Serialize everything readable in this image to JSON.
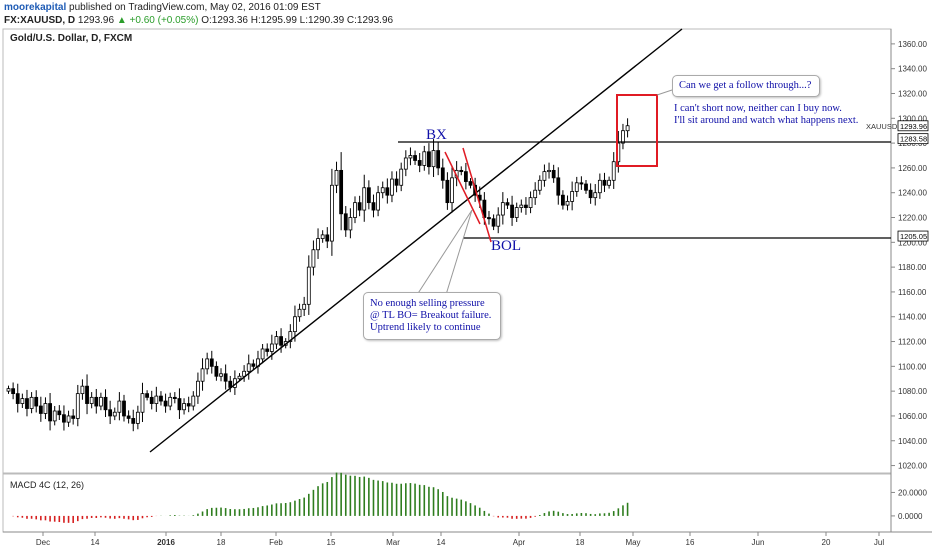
{
  "header": {
    "publisher": "moorekapital",
    "published_text": "published on TradingView.com, May 02, 2016 01:09 EST",
    "symbol_line_prefix": "FX:XAUUSD, D",
    "last_price": "1293.96",
    "change": "+0.60 (+0.05%)",
    "ohlc": "O:1293.36 H:1295.99 L:1290.39 C:1293.96"
  },
  "chart_title": "Gold/U.S. Dollar, D, FXCM",
  "annotations": {
    "bx": "BX",
    "bol": "BOL",
    "callout1": "Can we get a follow through...?",
    "note_free": [
      "I can't short now, neither can I buy now.",
      "I'll sit around and watch what happens next."
    ],
    "callout2": [
      "No enough selling pressure",
      "@ TL BO= Breakout failure.",
      "Uptrend likely to continue"
    ]
  },
  "macd_label": "MACD 4C (12, 26)",
  "colors": {
    "up_candle": "#ffffff",
    "down_candle": "#000000",
    "macd_pos": "#2e7d1e",
    "macd_neg": "#d61f1f",
    "annotation_text": "#1010a8",
    "box": "#e01b24"
  },
  "chart_data": {
    "type": "candlestick",
    "title": "Gold/U.S. Dollar, D, FXCM",
    "y_axis": {
      "range": [
        1014,
        1372
      ],
      "ticks": [
        1020,
        1040,
        1060,
        1080,
        1100,
        1120,
        1140,
        1160,
        1180,
        1200,
        1220,
        1240,
        1260,
        1280,
        1300,
        1320,
        1340,
        1360
      ],
      "tick_labels": [
        "1020.00",
        "1040.00",
        "1060.00",
        "1080.00",
        "1100.00",
        "1120.00",
        "1140.00",
        "1160.00",
        "1180.00",
        "1200.00",
        "1220.00",
        "1240.00",
        "1260.00",
        "1280.00",
        "1300.00",
        "1320.00",
        "1340.00",
        "1360.00"
      ]
    },
    "x_axis": {
      "tick_labels": [
        "Dec",
        "14",
        "2016",
        "18",
        "Feb",
        "15",
        "Mar",
        "14",
        "Apr",
        "18",
        "May",
        "16",
        "Jun",
        "20",
        "Jul"
      ]
    },
    "price_labels": [
      {
        "name": "XAUUSD",
        "value": "1293.96"
      },
      {
        "name": "",
        "value": "1283.58"
      },
      {
        "name": "",
        "value": "1205.05"
      }
    ],
    "levels": [
      1283.58,
      1205.05
    ],
    "closes": [
      1082,
      1078,
      1070,
      1074,
      1066,
      1075,
      1068,
      1062,
      1070,
      1056,
      1064,
      1061,
      1055,
      1060,
      1058,
      1078,
      1084,
      1070,
      1075,
      1068,
      1075,
      1065,
      1060,
      1063,
      1072,
      1060,
      1058,
      1054,
      1063,
      1078,
      1075,
      1070,
      1076,
      1072,
      1068,
      1075,
      1074,
      1065,
      1070,
      1068,
      1076,
      1088,
      1098,
      1106,
      1100,
      1092,
      1094,
      1088,
      1083,
      1090,
      1092,
      1096,
      1102,
      1100,
      1106,
      1114,
      1112,
      1118,
      1124,
      1117,
      1120,
      1128,
      1140,
      1146,
      1150,
      1180,
      1194,
      1203,
      1206,
      1201,
      1246,
      1258,
      1223,
      1210,
      1220,
      1232,
      1226,
      1244,
      1232,
      1226,
      1240,
      1244,
      1238,
      1251,
      1246,
      1259,
      1268,
      1270,
      1266,
      1262,
      1273,
      1261,
      1274,
      1260,
      1250,
      1232,
      1252,
      1258,
      1257,
      1249,
      1246,
      1238,
      1234,
      1220,
      1219,
      1213,
      1222,
      1232,
      1230,
      1220,
      1228,
      1230,
      1228,
      1236,
      1242,
      1250,
      1257,
      1258,
      1252,
      1238,
      1230,
      1233,
      1241,
      1248,
      1247,
      1242,
      1236,
      1240,
      1250,
      1246,
      1250,
      1265,
      1280,
      1290,
      1294
    ],
    "macd": {
      "label": "MACD 4C (12, 26)",
      "ticks": [
        20,
        0
      ],
      "tick_labels": [
        "20.0000",
        "0.0000"
      ],
      "range": [
        -12,
        34
      ]
    }
  }
}
